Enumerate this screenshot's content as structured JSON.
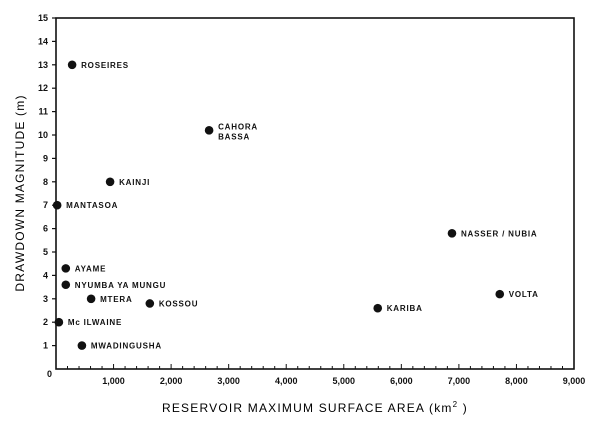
{
  "chart_data": {
    "type": "scatter",
    "title": "",
    "xlabel": "RESERVOIR MAXIMUM SURFACE AREA (km²)",
    "ylabel": "DRAWDOWN MAGNITUDE (m)",
    "xlim": [
      0,
      9000
    ],
    "ylim": [
      0,
      15
    ],
    "x_ticks": [
      0,
      1000,
      2000,
      3000,
      4000,
      5000,
      6000,
      7000,
      8000,
      9000
    ],
    "x_tick_labels": [
      "0",
      "1,000",
      "2,000",
      "3,000",
      "4,000",
      "5,000",
      "6,000",
      "7,000",
      "8,000",
      "9,000"
    ],
    "x_minor_step": 200,
    "y_ticks": [
      0,
      1,
      2,
      3,
      4,
      5,
      6,
      7,
      8,
      9,
      10,
      11,
      12,
      13,
      14,
      15
    ],
    "grid": false,
    "legend": "none",
    "points": [
      {
        "name": "ROSEIRES",
        "x": 280,
        "y": 13.0,
        "label_lines": [
          "ROSEIRES"
        ]
      },
      {
        "name": "CAHORA BASSA",
        "x": 2660,
        "y": 10.2,
        "label_lines": [
          "CAHORA",
          "BASSA"
        ]
      },
      {
        "name": "KAINJI",
        "x": 940,
        "y": 8.0,
        "label_lines": [
          "KAINJI"
        ]
      },
      {
        "name": "MANTASOA",
        "x": 20,
        "y": 7.0,
        "label_lines": [
          "MANTASOA"
        ]
      },
      {
        "name": "NASSER / NUBIA",
        "x": 6880,
        "y": 5.8,
        "label_lines": [
          "NASSER / NUBIA"
        ]
      },
      {
        "name": "AYAME",
        "x": 170,
        "y": 4.3,
        "label_lines": [
          "AYAME"
        ]
      },
      {
        "name": "NYUMBA YA MUNGU",
        "x": 170,
        "y": 3.6,
        "label_lines": [
          "NYUMBA YA MUNGU"
        ]
      },
      {
        "name": "VOLTA",
        "x": 7710,
        "y": 3.2,
        "label_lines": [
          "VOLTA"
        ]
      },
      {
        "name": "MTERA",
        "x": 610,
        "y": 3.0,
        "label_lines": [
          "MTERA"
        ]
      },
      {
        "name": "KOSSOU",
        "x": 1630,
        "y": 2.8,
        "label_lines": [
          "KOSSOU"
        ]
      },
      {
        "name": "KARIBA",
        "x": 5590,
        "y": 2.6,
        "label_lines": [
          "KARIBA"
        ]
      },
      {
        "name": "Mc ILWAINE",
        "x": 50,
        "y": 2.0,
        "label_lines": [
          "Mc ILWAINE"
        ]
      },
      {
        "name": "MWADINGUSHA",
        "x": 450,
        "y": 1.0,
        "label_lines": [
          "MWADINGUSHA"
        ]
      }
    ]
  },
  "colors": {
    "ink": "#111111",
    "background": "#ffffff"
  }
}
